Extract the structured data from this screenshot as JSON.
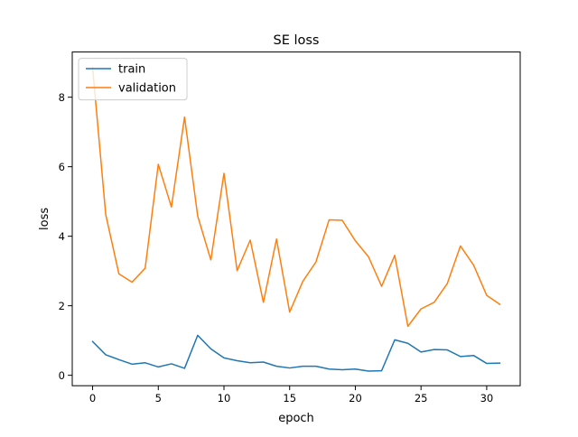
{
  "chart_data": {
    "type": "line",
    "title": "SE loss",
    "xlabel": "epoch",
    "ylabel": "loss",
    "xlim": [
      -1.55,
      32.55
    ],
    "ylim": [
      -0.3,
      9.3
    ],
    "xticks": [
      0,
      5,
      10,
      15,
      20,
      25,
      30
    ],
    "yticks": [
      0,
      2,
      4,
      6,
      8
    ],
    "grid": false,
    "legend_position": "top-left",
    "x": [
      0,
      1,
      2,
      3,
      4,
      5,
      6,
      7,
      8,
      9,
      10,
      11,
      12,
      13,
      14,
      15,
      16,
      17,
      18,
      19,
      20,
      21,
      22,
      23,
      24,
      25,
      26,
      27,
      28,
      29,
      30,
      31
    ],
    "series": [
      {
        "name": "train",
        "color": "#1f77b4",
        "values": [
          0.97,
          0.59,
          0.45,
          0.32,
          0.36,
          0.24,
          0.33,
          0.2,
          1.15,
          0.76,
          0.5,
          0.42,
          0.36,
          0.38,
          0.26,
          0.21,
          0.26,
          0.26,
          0.18,
          0.16,
          0.18,
          0.12,
          0.13,
          1.02,
          0.92,
          0.67,
          0.74,
          0.73,
          0.54,
          0.57,
          0.34,
          0.35
        ]
      },
      {
        "name": "validation",
        "color": "#ff7f0e",
        "values": [
          8.85,
          4.62,
          2.92,
          2.68,
          3.08,
          6.07,
          4.84,
          7.43,
          4.58,
          3.32,
          5.81,
          3.01,
          3.89,
          2.1,
          3.92,
          1.82,
          2.7,
          3.26,
          4.47,
          4.46,
          3.87,
          3.41,
          2.56,
          3.45,
          1.41,
          1.91,
          2.1,
          2.64,
          3.72,
          3.17,
          2.3,
          2.04
        ]
      }
    ]
  }
}
